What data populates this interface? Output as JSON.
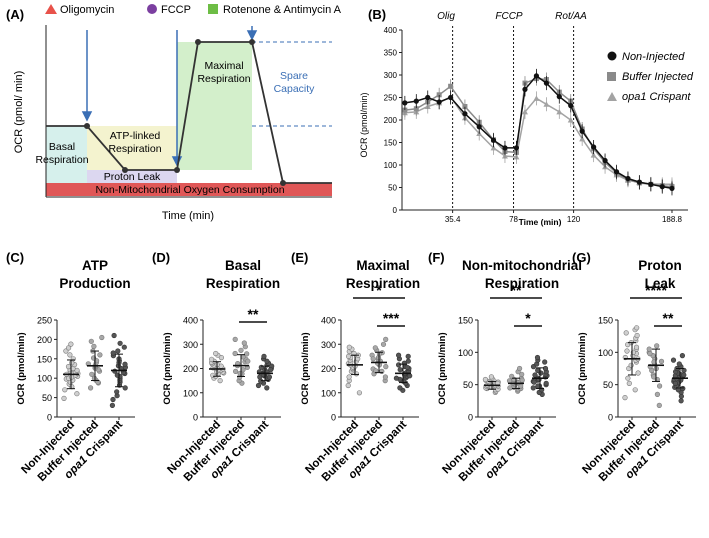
{
  "panel_labels": {
    "A": "(A)",
    "B": "(B)",
    "C": "(C)",
    "D": "(D)",
    "E": "(E)",
    "F": "(F)",
    "G": "(G)"
  },
  "colors": {
    "oligomycin": "#e8524a",
    "fccp": "#7b3fa0",
    "rotenone": "#6dbd45",
    "basal_fill": "#d6f0ec",
    "atp_fill": "#f4f3cf",
    "maximal_fill": "#d3efcb",
    "proton_fill": "#dcd7f0",
    "nonmito_fill": "#e05757",
    "injection_arrow": "#3b6fb5",
    "spare_text": "#3b6fb5",
    "line_dark": "#222222",
    "buffer_gray": "#8a8a8a",
    "crispant_gray": "#a3a3a3",
    "strip_light": "#cfcfcf",
    "strip_mid": "#a8a8a8",
    "strip_dark": "#555555"
  },
  "panel_a": {
    "legend": [
      {
        "symbol": "triangle",
        "color_key": "oligomycin",
        "label": "Oligomycin"
      },
      {
        "symbol": "circle",
        "color_key": "fccp",
        "label": "FCCP"
      },
      {
        "symbol": "square",
        "color_key": "rotenone",
        "label": "Rotenone & Antimycin A"
      }
    ],
    "ylabel": "OCR (pmol/ min)",
    "xlabel": "Time (min)",
    "regions": {
      "basal": [
        "Basal",
        "Respiration"
      ],
      "atp": [
        "ATP-linked",
        "Respiration"
      ],
      "maximal": [
        "Maximal",
        "Respiration"
      ],
      "spare": [
        "Spare",
        "Capacity"
      ],
      "proton": "Proton Leak",
      "nonmito": "Non-Mitochondrial Oxygen Consumption"
    }
  },
  "panel_b": {
    "ylabel": "OCR (pmol/min)",
    "xlabel": "Time (min)",
    "injections": [
      "Olig",
      "FCCP",
      "Rot/AA"
    ],
    "legend": [
      "Non-Injected",
      "Buffer Injected",
      "opa1 Crispant"
    ]
  },
  "chart_data": [
    {
      "panel": "B",
      "type": "line",
      "xlabel": "Time (min)",
      "ylabel": "OCR (pmol/min)",
      "x_ticks": [
        "35.4",
        "78",
        "120",
        "188.8"
      ],
      "y_ticks": [
        "0",
        "50",
        "100",
        "150",
        "200",
        "250",
        "300",
        "350",
        "400"
      ],
      "ylim": [
        0,
        400
      ],
      "xlim": [
        0,
        200
      ],
      "injection_times": [
        35.4,
        78,
        120
      ],
      "x": [
        2,
        10,
        18,
        26,
        34,
        44,
        54,
        64,
        72,
        80,
        86,
        94,
        101,
        110,
        118,
        126,
        134,
        142,
        150,
        158,
        166,
        174,
        182,
        188.8
      ],
      "series": [
        {
          "name": "Non-Injected",
          "marker": "circle",
          "color": "#111111",
          "values": [
            238,
            242,
            250,
            240,
            250,
            214,
            185,
            155,
            138,
            138,
            268,
            298,
            282,
            252,
            232,
            175,
            140,
            110,
            85,
            70,
            62,
            57,
            52,
            48
          ]
        },
        {
          "name": "Buffer Injected",
          "marker": "square",
          "color": "#8a8a8a",
          "values": [
            222,
            225,
            240,
            256,
            275,
            230,
            195,
            156,
            130,
            128,
            282,
            292,
            290,
            262,
            242,
            180,
            136,
            106,
            82,
            68,
            60,
            57,
            54,
            52
          ]
        },
        {
          "name": "opa1 Crispant",
          "marker": "triangle",
          "color": "#a3a3a3",
          "values": [
            216,
            218,
            230,
            238,
            252,
            205,
            170,
            138,
            120,
            118,
            218,
            248,
            235,
            218,
            200,
            158,
            122,
            96,
            78,
            66,
            61,
            58,
            57,
            57
          ]
        }
      ],
      "legend_position": "right"
    },
    {
      "panel": "C",
      "type": "scatter",
      "title": "ATP Production",
      "ylabel": "OCR (pmol/min)",
      "categories": [
        "Non-Injected",
        "Buffer Injected",
        "opa1 Crispant"
      ],
      "ylim": [
        0,
        250
      ],
      "yticks": [
        0,
        50,
        100,
        150,
        200,
        250
      ],
      "series": [
        {
          "name": "Non-Injected",
          "mean": 110,
          "sd": 37,
          "values": [
            48,
            60,
            70,
            78,
            85,
            90,
            95,
            98,
            100,
            103,
            105,
            108,
            110,
            112,
            115,
            118,
            120,
            122,
            125,
            130,
            135,
            140,
            150,
            160,
            170,
            178,
            188
          ]
        },
        {
          "name": "Buffer Injected",
          "mean": 132,
          "sd": 38,
          "values": [
            75,
            88,
            95,
            100,
            110,
            118,
            122,
            126,
            130,
            133,
            137,
            140,
            145,
            152,
            160,
            170,
            182,
            195,
            205,
            90
          ]
        },
        {
          "name": "opa1 Crispant",
          "mean": 120,
          "sd": 42,
          "values": [
            30,
            45,
            55,
            65,
            75,
            82,
            90,
            95,
            100,
            105,
            108,
            112,
            115,
            118,
            122,
            125,
            128,
            132,
            136,
            140,
            145,
            150,
            158,
            165,
            170,
            180,
            190,
            210
          ]
        }
      ],
      "brackets": []
    },
    {
      "panel": "D",
      "type": "scatter",
      "title": "Basal Respiration",
      "ylabel": "OCR (pmol/min)",
      "categories": [
        "Non-Injected",
        "Buffer Injected",
        "opa1 Crispant"
      ],
      "ylim": [
        0,
        400
      ],
      "yticks": [
        0,
        100,
        200,
        300,
        400
      ],
      "series": [
        {
          "name": "Non-Injected",
          "mean": 198,
          "sd": 30,
          "values": [
            150,
            160,
            168,
            172,
            178,
            182,
            185,
            188,
            192,
            195,
            198,
            200,
            203,
            206,
            210,
            213,
            216,
            220,
            225,
            230,
            238,
            245,
            255,
            262
          ]
        },
        {
          "name": "Buffer Injected",
          "mean": 212,
          "sd": 45,
          "values": [
            140,
            150,
            165,
            178,
            188,
            195,
            205,
            212,
            220,
            228,
            238,
            248,
            262,
            275,
            290,
            305,
            320,
            180,
            230,
            260
          ]
        },
        {
          "name": "opa1 Crispant",
          "mean": 180,
          "sd": 30,
          "values": [
            120,
            130,
            140,
            148,
            155,
            160,
            165,
            170,
            174,
            178,
            182,
            186,
            190,
            195,
            200,
            205,
            210,
            215,
            222,
            230,
            240,
            250,
            165,
            175,
            185,
            195
          ]
        }
      ],
      "brackets": [
        {
          "from": 1,
          "to": 2,
          "label": "**"
        }
      ]
    },
    {
      "panel": "E",
      "type": "scatter",
      "title": "Maximal Respiration",
      "ylabel": "OCR (pmol/min)",
      "categories": [
        "Non-Injected",
        "Buffer Injected",
        "opa1 Crispant"
      ],
      "ylim": [
        0,
        400
      ],
      "yticks": [
        0,
        100,
        200,
        300,
        400
      ],
      "series": [
        {
          "name": "Non-Injected",
          "mean": 215,
          "sd": 40,
          "values": [
            100,
            130,
            150,
            165,
            178,
            188,
            195,
            200,
            205,
            210,
            215,
            220,
            225,
            230,
            235,
            240,
            245,
            250,
            255,
            262,
            270,
            280,
            288
          ]
        },
        {
          "name": "Buffer Injected",
          "mean": 225,
          "sd": 42,
          "values": [
            150,
            165,
            178,
            188,
            198,
            208,
            215,
            222,
            230,
            238,
            245,
            255,
            265,
            275,
            285,
            300,
            320,
            190,
            240,
            260
          ]
        },
        {
          "name": "opa1 Crispant",
          "mean": 180,
          "sd": 38,
          "values": [
            110,
            120,
            130,
            140,
            148,
            155,
            162,
            168,
            175,
            180,
            185,
            190,
            195,
            200,
            208,
            215,
            222,
            230,
            240,
            250,
            255,
            160,
            170,
            205
          ]
        }
      ],
      "brackets": [
        {
          "from": 0,
          "to": 2,
          "label": "*"
        },
        {
          "from": 1,
          "to": 2,
          "label": "***"
        }
      ]
    },
    {
      "panel": "F",
      "type": "scatter",
      "title": "Non-mitochondrial Respiration",
      "ylabel": "OCR (pmol/min)",
      "categories": [
        "Non-Injected",
        "Buffer Injected",
        "opa1 Crispant"
      ],
      "ylim": [
        0,
        150
      ],
      "yticks": [
        0,
        50,
        100,
        150
      ],
      "series": [
        {
          "name": "Non-Injected",
          "mean": 49,
          "sd": 6,
          "values": [
            38,
            40,
            42,
            43,
            44,
            45,
            46,
            47,
            48,
            48,
            49,
            50,
            50,
            51,
            52,
            53,
            54,
            55,
            56,
            57,
            58,
            60,
            62,
            46,
            52
          ]
        },
        {
          "name": "Buffer Injected",
          "mean": 52,
          "sd": 8,
          "values": [
            40,
            42,
            44,
            46,
            48,
            50,
            52,
            54,
            56,
            58,
            60,
            63,
            66,
            70,
            75,
            45,
            53,
            57
          ]
        },
        {
          "name": "opa1 Crispant",
          "mean": 60,
          "sd": 16,
          "values": [
            35,
            38,
            42,
            45,
            48,
            50,
            52,
            55,
            57,
            60,
            62,
            64,
            66,
            68,
            70,
            72,
            75,
            78,
            82,
            85,
            88,
            92,
            58,
            65,
            54,
            48
          ]
        }
      ],
      "brackets": [
        {
          "from": 0,
          "to": 2,
          "label": "**"
        },
        {
          "from": 1,
          "to": 2,
          "label": "*"
        }
      ]
    },
    {
      "panel": "G",
      "type": "scatter",
      "title": "Proton Leak",
      "ylabel": "OCR (pmol/min)",
      "categories": [
        "Non-Injected",
        "Buffer Injected",
        "opa1 Crispant"
      ],
      "ylim": [
        0,
        150
      ],
      "yticks": [
        0,
        50,
        100,
        150
      ],
      "series": [
        {
          "name": "Non-Injected",
          "mean": 90,
          "sd": 25,
          "values": [
            30,
            42,
            52,
            60,
            68,
            75,
            80,
            85,
            88,
            92,
            95,
            98,
            102,
            105,
            108,
            112,
            115,
            118,
            122,
            126,
            130,
            135,
            138,
            90,
            100
          ]
        },
        {
          "name": "Buffer Injected",
          "mean": 80,
          "sd": 25,
          "values": [
            18,
            35,
            48,
            58,
            65,
            72,
            78,
            82,
            86,
            90,
            95,
            100,
            105,
            110,
            75,
            85,
            62,
            98
          ]
        },
        {
          "name": "opa1 Crispant",
          "mean": 60,
          "sd": 15,
          "values": [
            25,
            32,
            38,
            42,
            46,
            50,
            53,
            55,
            58,
            60,
            62,
            64,
            66,
            68,
            70,
            72,
            75,
            78,
            82,
            88,
            95,
            57,
            48,
            44,
            65,
            52
          ]
        }
      ],
      "brackets": [
        {
          "from": 0,
          "to": 2,
          "label": "****"
        },
        {
          "from": 1,
          "to": 2,
          "label": "**"
        }
      ]
    }
  ],
  "strip_x_labels": [
    {
      "text": "Non-Injected",
      "italic": false
    },
    {
      "text": "Buffer Injected",
      "italic": false
    },
    {
      "prefix": "opa1",
      "text": " Crispant",
      "italic_prefix": true
    }
  ]
}
